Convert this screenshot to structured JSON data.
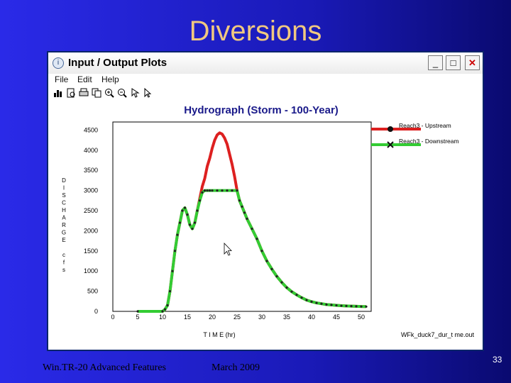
{
  "slide": {
    "title": "Diversions",
    "footer_left": "Win.TR-20 Advanced Features",
    "footer_center": "March 2009",
    "page_number": "33"
  },
  "window": {
    "title": "Input / Output Plots",
    "controls": {
      "minimize": "_",
      "maximize": "□",
      "close": "✕"
    },
    "menu": [
      "File",
      "Edit",
      "Help"
    ],
    "toolbar_icons": [
      "bar-chart-icon",
      "print-preview-icon",
      "print-icon",
      "copy-icon",
      "zoom-in-icon",
      "zoom-out-icon",
      "pan-icon",
      "pointer-icon"
    ]
  },
  "chart_data": {
    "type": "line",
    "title": "Hydrograph (Storm - 100-Year)",
    "xlabel": "T I M E (hr)",
    "ylabel": "D I S C H A R G E   c f s",
    "ylabel_letters": [
      "D",
      "I",
      "S",
      "C",
      "H",
      "A",
      "R",
      "G",
      "E",
      "",
      "c",
      "f",
      "s"
    ],
    "x_ticks": [
      0,
      5,
      10,
      15,
      20,
      25,
      30,
      35,
      40,
      45,
      50
    ],
    "y_ticks": [
      0,
      500,
      1000,
      1500,
      2000,
      2500,
      3000,
      3500,
      4000,
      4500
    ],
    "xlim": [
      0,
      52
    ],
    "ylim": [
      0,
      4700
    ],
    "grid": false,
    "legend_position": "right",
    "filename": "WFk_duck7_dur_t me.out",
    "colors": {
      "upstream": "#dd2020",
      "downstream": "#33cc33",
      "marker": "#222222"
    },
    "series": [
      {
        "name": "Reach3 - Upstream",
        "marker": "circle",
        "x": [
          5,
          10,
          10.5,
          11,
          11.5,
          12,
          12.5,
          13,
          13.5,
          14,
          14.5,
          15,
          15.5,
          16,
          16.5,
          17,
          17.5,
          18,
          18.5,
          19,
          19.5,
          20,
          20.5,
          21,
          21.5,
          22,
          22.5,
          23,
          23.5,
          24,
          24.5,
          25,
          25.5,
          26,
          26.5,
          27,
          28,
          29,
          30,
          31,
          32,
          33,
          34,
          35,
          36,
          37,
          38,
          39,
          40,
          41,
          42,
          43,
          44,
          45,
          46,
          47,
          48,
          49,
          50,
          51
        ],
        "y": [
          0,
          0,
          50,
          150,
          500,
          1000,
          1500,
          1900,
          2200,
          2500,
          2570,
          2400,
          2150,
          2050,
          2200,
          2500,
          2800,
          3100,
          3300,
          3600,
          3800,
          4050,
          4250,
          4380,
          4430,
          4400,
          4300,
          4150,
          3900,
          3650,
          3350,
          3000,
          2750,
          2600,
          2450,
          2300,
          2050,
          1800,
          1500,
          1250,
          1050,
          870,
          720,
          590,
          490,
          410,
          340,
          280,
          240,
          210,
          190,
          170,
          160,
          150,
          140,
          135,
          130,
          125,
          120,
          118
        ]
      },
      {
        "name": "Reach3 - Downstream",
        "marker": "cross",
        "x": [
          5,
          10,
          10.5,
          11,
          11.5,
          12,
          12.5,
          13,
          13.5,
          14,
          14.5,
          15,
          15.5,
          16,
          16.5,
          17,
          17.5,
          18,
          18.5,
          19,
          19.5,
          20,
          21,
          22,
          23,
          24,
          25,
          25.5,
          26,
          26.5,
          27,
          28,
          29,
          30,
          31,
          32,
          33,
          34,
          35,
          36,
          37,
          38,
          39,
          40,
          41,
          42,
          43,
          44,
          45,
          46,
          47,
          48,
          49,
          50,
          51
        ],
        "y": [
          0,
          0,
          50,
          150,
          500,
          1000,
          1500,
          1900,
          2200,
          2500,
          2570,
          2400,
          2150,
          2050,
          2200,
          2500,
          2750,
          2950,
          3000,
          3000,
          3000,
          3000,
          3000,
          3000,
          3000,
          3000,
          3000,
          2750,
          2600,
          2450,
          2300,
          2050,
          1800,
          1500,
          1250,
          1050,
          870,
          720,
          590,
          490,
          410,
          340,
          280,
          240,
          210,
          190,
          170,
          160,
          150,
          140,
          135,
          130,
          125,
          120,
          118
        ]
      }
    ]
  }
}
